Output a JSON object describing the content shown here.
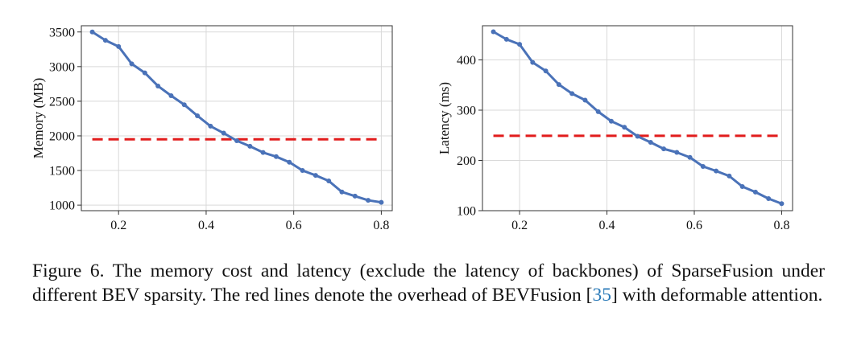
{
  "chart_data": [
    {
      "type": "line",
      "title": "",
      "xlabel": "",
      "ylabel": "Memory (MB)",
      "xlim": [
        0.115,
        0.825
      ],
      "ylim": [
        920,
        3590
      ],
      "xticks": [
        0.2,
        0.4,
        0.6,
        0.8
      ],
      "xtick_labels": [
        "0.2",
        "0.4",
        "0.6",
        "0.8"
      ],
      "yticks": [
        1000,
        1500,
        2000,
        2500,
        3000,
        3500
      ],
      "ytick_labels": [
        "1000",
        "1500",
        "2000",
        "2500",
        "3000",
        "3500"
      ],
      "grid": true,
      "series": [
        {
          "name": "",
          "color": "#4a72b8",
          "x": [
            0.14,
            0.17,
            0.2,
            0.23,
            0.26,
            0.29,
            0.32,
            0.35,
            0.38,
            0.41,
            0.44,
            0.47,
            0.5,
            0.53,
            0.56,
            0.59,
            0.62,
            0.65,
            0.68,
            0.71,
            0.74,
            0.77,
            0.8
          ],
          "y": [
            3500,
            3380,
            3290,
            3040,
            2910,
            2720,
            2580,
            2450,
            2290,
            2140,
            2040,
            1930,
            1850,
            1760,
            1700,
            1620,
            1500,
            1430,
            1350,
            1190,
            1130,
            1070,
            1040
          ]
        }
      ],
      "reference_line": {
        "y": 1950,
        "x_range": [
          0.14,
          0.8
        ],
        "color": "#e11b1b",
        "style": "dashed"
      }
    },
    {
      "type": "line",
      "title": "",
      "xlabel": "",
      "ylabel": "Latency (ms)",
      "xlim": [
        0.115,
        0.825
      ],
      "ylim": [
        100,
        468
      ],
      "xticks": [
        0.2,
        0.4,
        0.6,
        0.8
      ],
      "xtick_labels": [
        "0.2",
        "0.4",
        "0.6",
        "0.8"
      ],
      "yticks": [
        100,
        200,
        300,
        400
      ],
      "ytick_labels": [
        "100",
        "200",
        "300",
        "400"
      ],
      "grid": true,
      "series": [
        {
          "name": "",
          "color": "#4a72b8",
          "x": [
            0.14,
            0.17,
            0.2,
            0.23,
            0.26,
            0.29,
            0.32,
            0.35,
            0.38,
            0.41,
            0.44,
            0.47,
            0.5,
            0.53,
            0.56,
            0.59,
            0.62,
            0.65,
            0.68,
            0.71,
            0.74,
            0.77,
            0.8
          ],
          "y": [
            456,
            441,
            431,
            395,
            378,
            351,
            333,
            320,
            297,
            278,
            266,
            248,
            236,
            223,
            216,
            206,
            188,
            179,
            169,
            148,
            137,
            124,
            114
          ]
        }
      ],
      "reference_line": {
        "y": 249,
        "x_range": [
          0.14,
          0.8
        ],
        "color": "#e11b1b",
        "style": "dashed"
      }
    }
  ],
  "caption": {
    "part1": "Figure 6. The memory cost and latency (exclude the latency of backbones) of SparseFusion under different BEV sparsity. The red lines denote the overhead of BEVFusion [",
    "ref": "35",
    "part2": "] with deformable attention."
  }
}
